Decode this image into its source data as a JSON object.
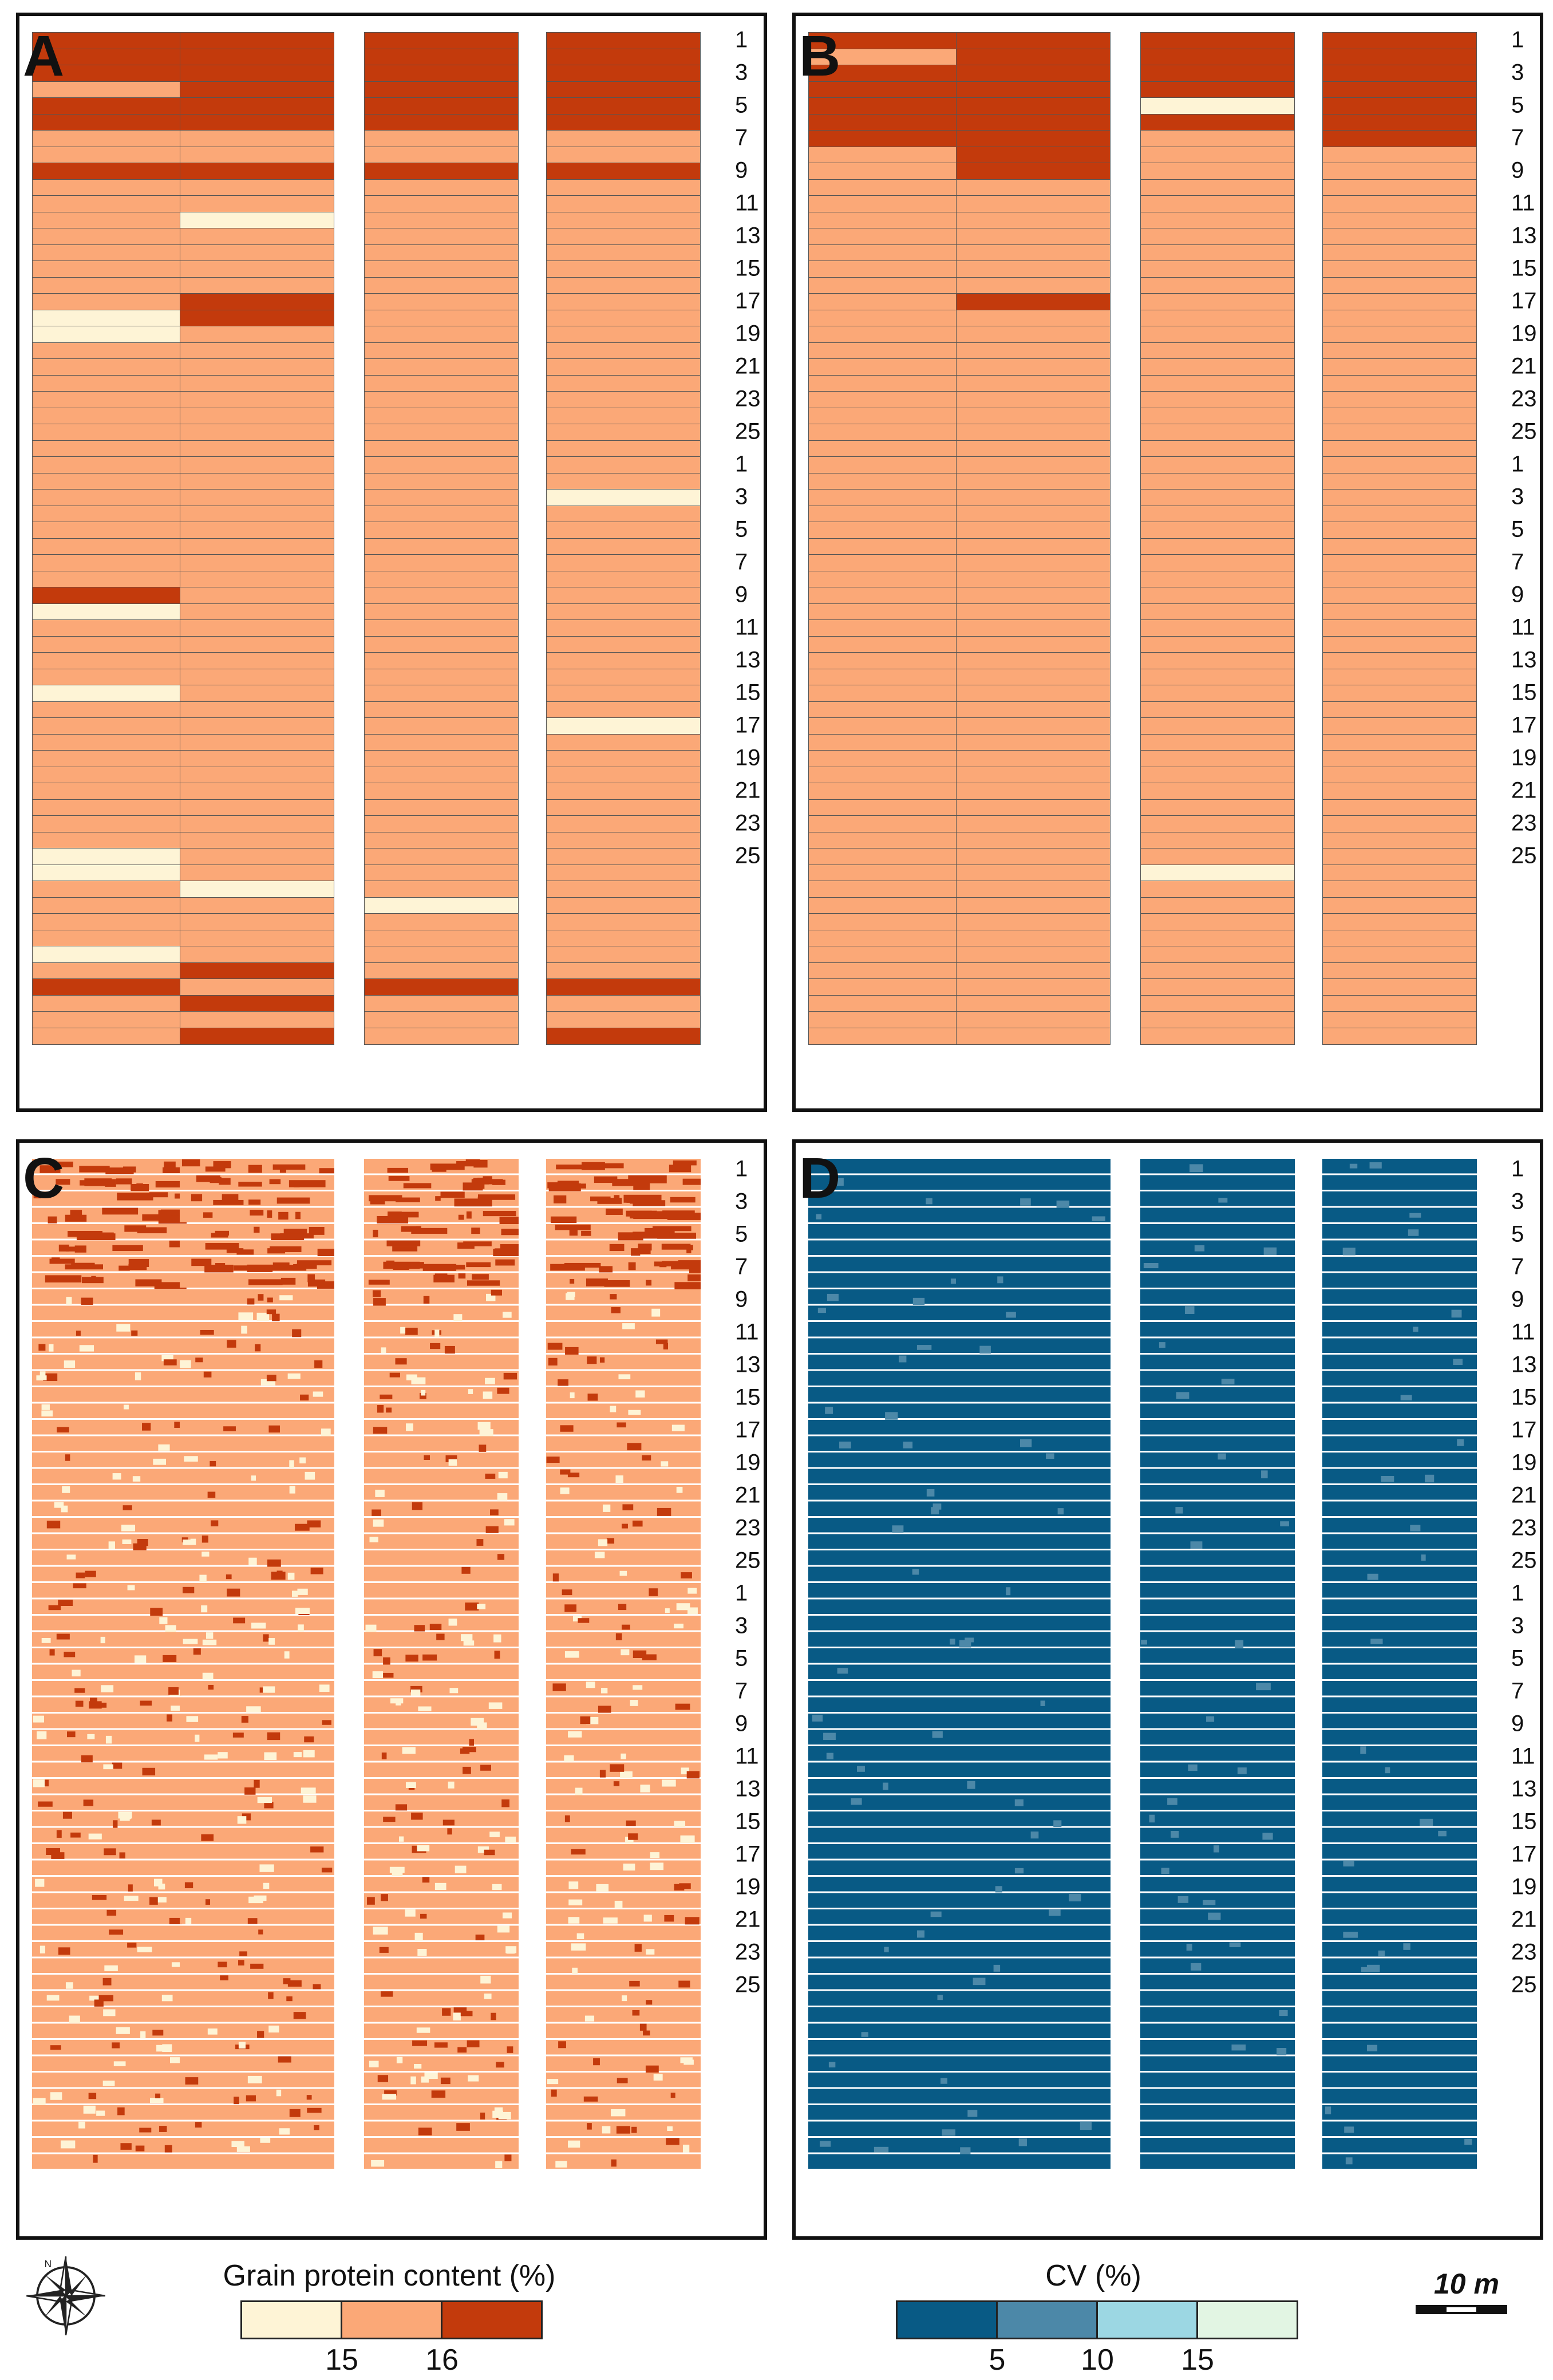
{
  "colors": {
    "low": "#FEF4D6",
    "mid": "#FBA877",
    "high": "#C33A0C",
    "cv1": "#085A85",
    "cv2": "#4C88A8",
    "cv3": "#9CD7E3",
    "cv4": "#E2F5E3"
  },
  "panels": [
    {
      "id": "A",
      "letter": "A",
      "kind": "classified",
      "columns": [
        "HHHMHHMMHMMMMMMMMLLMMMMMMMMMMMMMMMHLMMMMLMMMMMMMMMLLMMMMLMHMMM",
        "HHHHHHMMHMMLMMMMHHMMMMMMMMMMMMMMMMMMMMMMMMMMMMMMMMMMLMMMMHMHMH",
        "HHHHHHMMHMMMMMMMMMMMMMMMMMMMMMMMMMMMMMMMMMMMMMMMMMMMMLMMMMHMMM",
        "HHHHHHMMHMMMMMMMMMMMMMMMMMMMLMMMMMMMMMMMMMLMMMMMMMMMMMMMMMHMMH"
      ]
    },
    {
      "id": "B",
      "letter": "B",
      "kind": "classified",
      "columns": [
        "HMHHHHHMMMMMMMMMMMMMMMMMMMMMMMMMMMMMMMMMMMMMMMMMMMMMMMMMMMMMMM",
        "HHHHHHHHHMMMMMMMHMMMMMMMMMMMMMMMMMMMMMMMMMMMMMMMMMMMMMMMMMMMMM",
        "HHHHLHMMMMMMMMMMMMMMMMMMMMMMMMMMMMMMMMMMMMMMMMMMMMMLMMMMMMMMMM",
        "HHHHHHHMMMMMMMMMMMMMMMMMMMMMMMMMMMMMMMMMMMMMMMMMMMMMMMMMMMMMMM"
      ]
    },
    {
      "id": "C",
      "letter": "C",
      "kind": "continuous"
    },
    {
      "id": "D",
      "letter": "D",
      "kind": "cv"
    }
  ],
  "row_labels": [
    "1",
    "3",
    "5",
    "7",
    "9",
    "11",
    "13",
    "15",
    "17",
    "19",
    "21",
    "23",
    "25",
    "1",
    "3",
    "5",
    "7",
    "9",
    "11",
    "13",
    "15",
    "17",
    "19",
    "21",
    "23",
    "25"
  ],
  "legend_protein": {
    "title": "Grain protein content (%)",
    "ticks": [
      "15",
      "16"
    ]
  },
  "legend_cv": {
    "title": "CV (%)",
    "ticks": [
      "5",
      "10",
      "15"
    ]
  },
  "scale_bar": {
    "label": "10 m"
  },
  "icons": {
    "north_arrow": "compass-rose-icon"
  }
}
